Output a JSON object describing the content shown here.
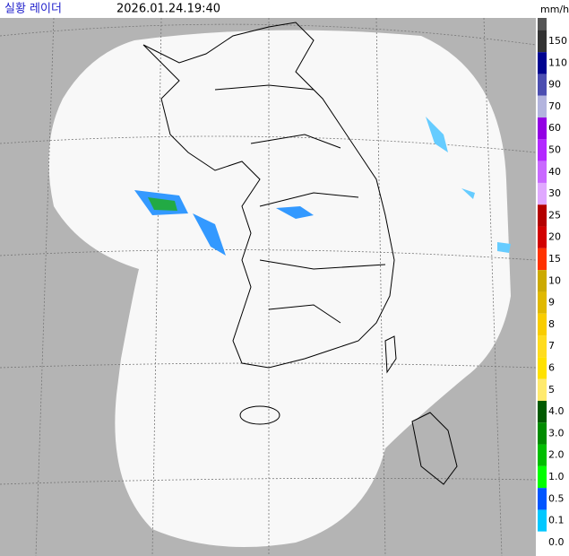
{
  "header": {
    "title": "실황 레이더",
    "timestamp": "2026.01.24.19:40",
    "unit": "mm/h"
  },
  "legend": {
    "items": [
      {
        "label": "150",
        "color": "#333333"
      },
      {
        "label": "110",
        "color": "#000390"
      },
      {
        "label": "90",
        "color": "#4c4eb1"
      },
      {
        "label": "70",
        "color": "#b3b4de"
      },
      {
        "label": "60",
        "color": "#9300e4"
      },
      {
        "label": "50",
        "color": "#b329ff"
      },
      {
        "label": "40",
        "color": "#c969ff"
      },
      {
        "label": "30",
        "color": "#e0a9ff"
      },
      {
        "label": "25",
        "color": "#b40000"
      },
      {
        "label": "20",
        "color": "#d20000"
      },
      {
        "label": "15",
        "color": "#ff3200"
      },
      {
        "label": "10",
        "color": "#ccaa00"
      },
      {
        "label": "9",
        "color": "#e0b900"
      },
      {
        "label": "8",
        "color": "#f9cd00"
      },
      {
        "label": "7",
        "color": "#ffdc1f"
      },
      {
        "label": "6",
        "color": "#ffe100"
      },
      {
        "label": "5",
        "color": "#ffea6e"
      },
      {
        "label": "4.0",
        "color": "#005a00"
      },
      {
        "label": "3.0",
        "color": "#008c00"
      },
      {
        "label": "2.0",
        "color": "#00be00"
      },
      {
        "label": "1.0",
        "color": "#00ff00"
      },
      {
        "label": "0.5",
        "color": "#0055ff"
      },
      {
        "label": "0.1",
        "color": "#00c8ff"
      },
      {
        "label": "0.0",
        "color": "#ffffff"
      }
    ]
  }
}
